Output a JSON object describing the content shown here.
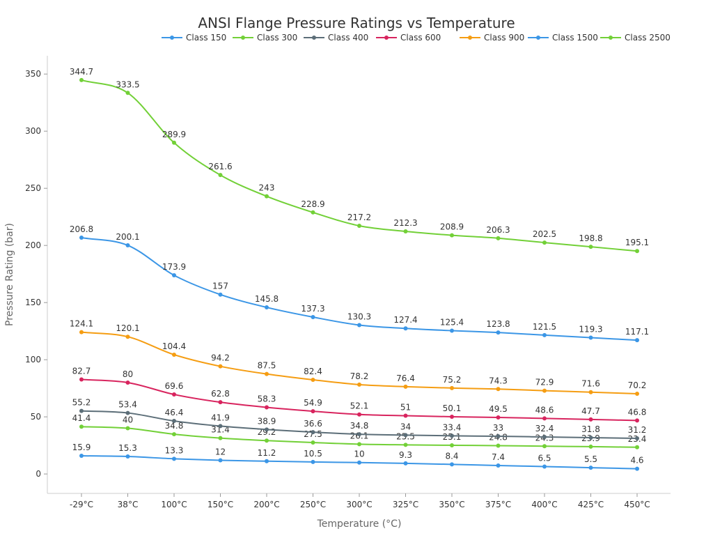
{
  "chart_data": {
    "type": "line",
    "title": "ANSI Flange Pressure Ratings vs Temperature",
    "xlabel": "Temperature (°C)",
    "ylabel": "Pressure Rating (bar)",
    "categories": [
      "-29°C",
      "38°C",
      "100°C",
      "150°C",
      "200°C",
      "250°C",
      "300°C",
      "325°C",
      "350°C",
      "375°C",
      "400°C",
      "425°C",
      "450°C"
    ],
    "ylim": [
      -17,
      366
    ],
    "yticks": [
      0,
      50,
      100,
      150,
      200,
      250,
      300,
      350
    ],
    "grid": false,
    "legend_position": "top",
    "smooth": true,
    "data_labels": true,
    "series": [
      {
        "name": "Class 150",
        "color": "#3b96e6",
        "values": [
          15.9,
          15.3,
          13.3,
          12,
          11.2,
          10.5,
          10,
          9.3,
          8.4,
          7.4,
          6.5,
          5.5,
          4.6
        ]
      },
      {
        "name": "Class 300",
        "color": "#72d037",
        "values": [
          41.4,
          40,
          34.8,
          31.4,
          29.2,
          27.5,
          26.1,
          25.5,
          25.1,
          24.8,
          24.3,
          23.9,
          23.4
        ]
      },
      {
        "name": "Class 400",
        "color": "#5c6e78",
        "values": [
          55.2,
          53.4,
          46.4,
          41.9,
          38.9,
          36.6,
          34.8,
          34,
          33.4,
          33,
          32.4,
          31.8,
          31.2
        ]
      },
      {
        "name": "Class 600",
        "color": "#d8245e",
        "values": [
          82.7,
          80,
          69.6,
          62.8,
          58.3,
          54.9,
          52.1,
          51,
          50.1,
          49.5,
          48.6,
          47.7,
          46.8
        ]
      },
      {
        "name": "Class 900",
        "color": "#f59d12",
        "values": [
          124.1,
          120.1,
          104.4,
          94.2,
          87.5,
          82.4,
          78.2,
          76.4,
          75.2,
          74.3,
          72.9,
          71.6,
          70.2
        ]
      },
      {
        "name": "Class 1500",
        "color": "#3b96e6",
        "values": [
          206.8,
          200.1,
          173.9,
          157,
          145.8,
          137.3,
          130.3,
          127.4,
          125.4,
          123.8,
          121.5,
          119.3,
          117.1
        ]
      },
      {
        "name": "Class 2500",
        "color": "#72d037",
        "values": [
          344.7,
          333.5,
          289.9,
          261.6,
          243,
          228.9,
          217.2,
          212.3,
          208.9,
          206.3,
          202.5,
          198.8,
          195.1
        ]
      }
    ]
  }
}
